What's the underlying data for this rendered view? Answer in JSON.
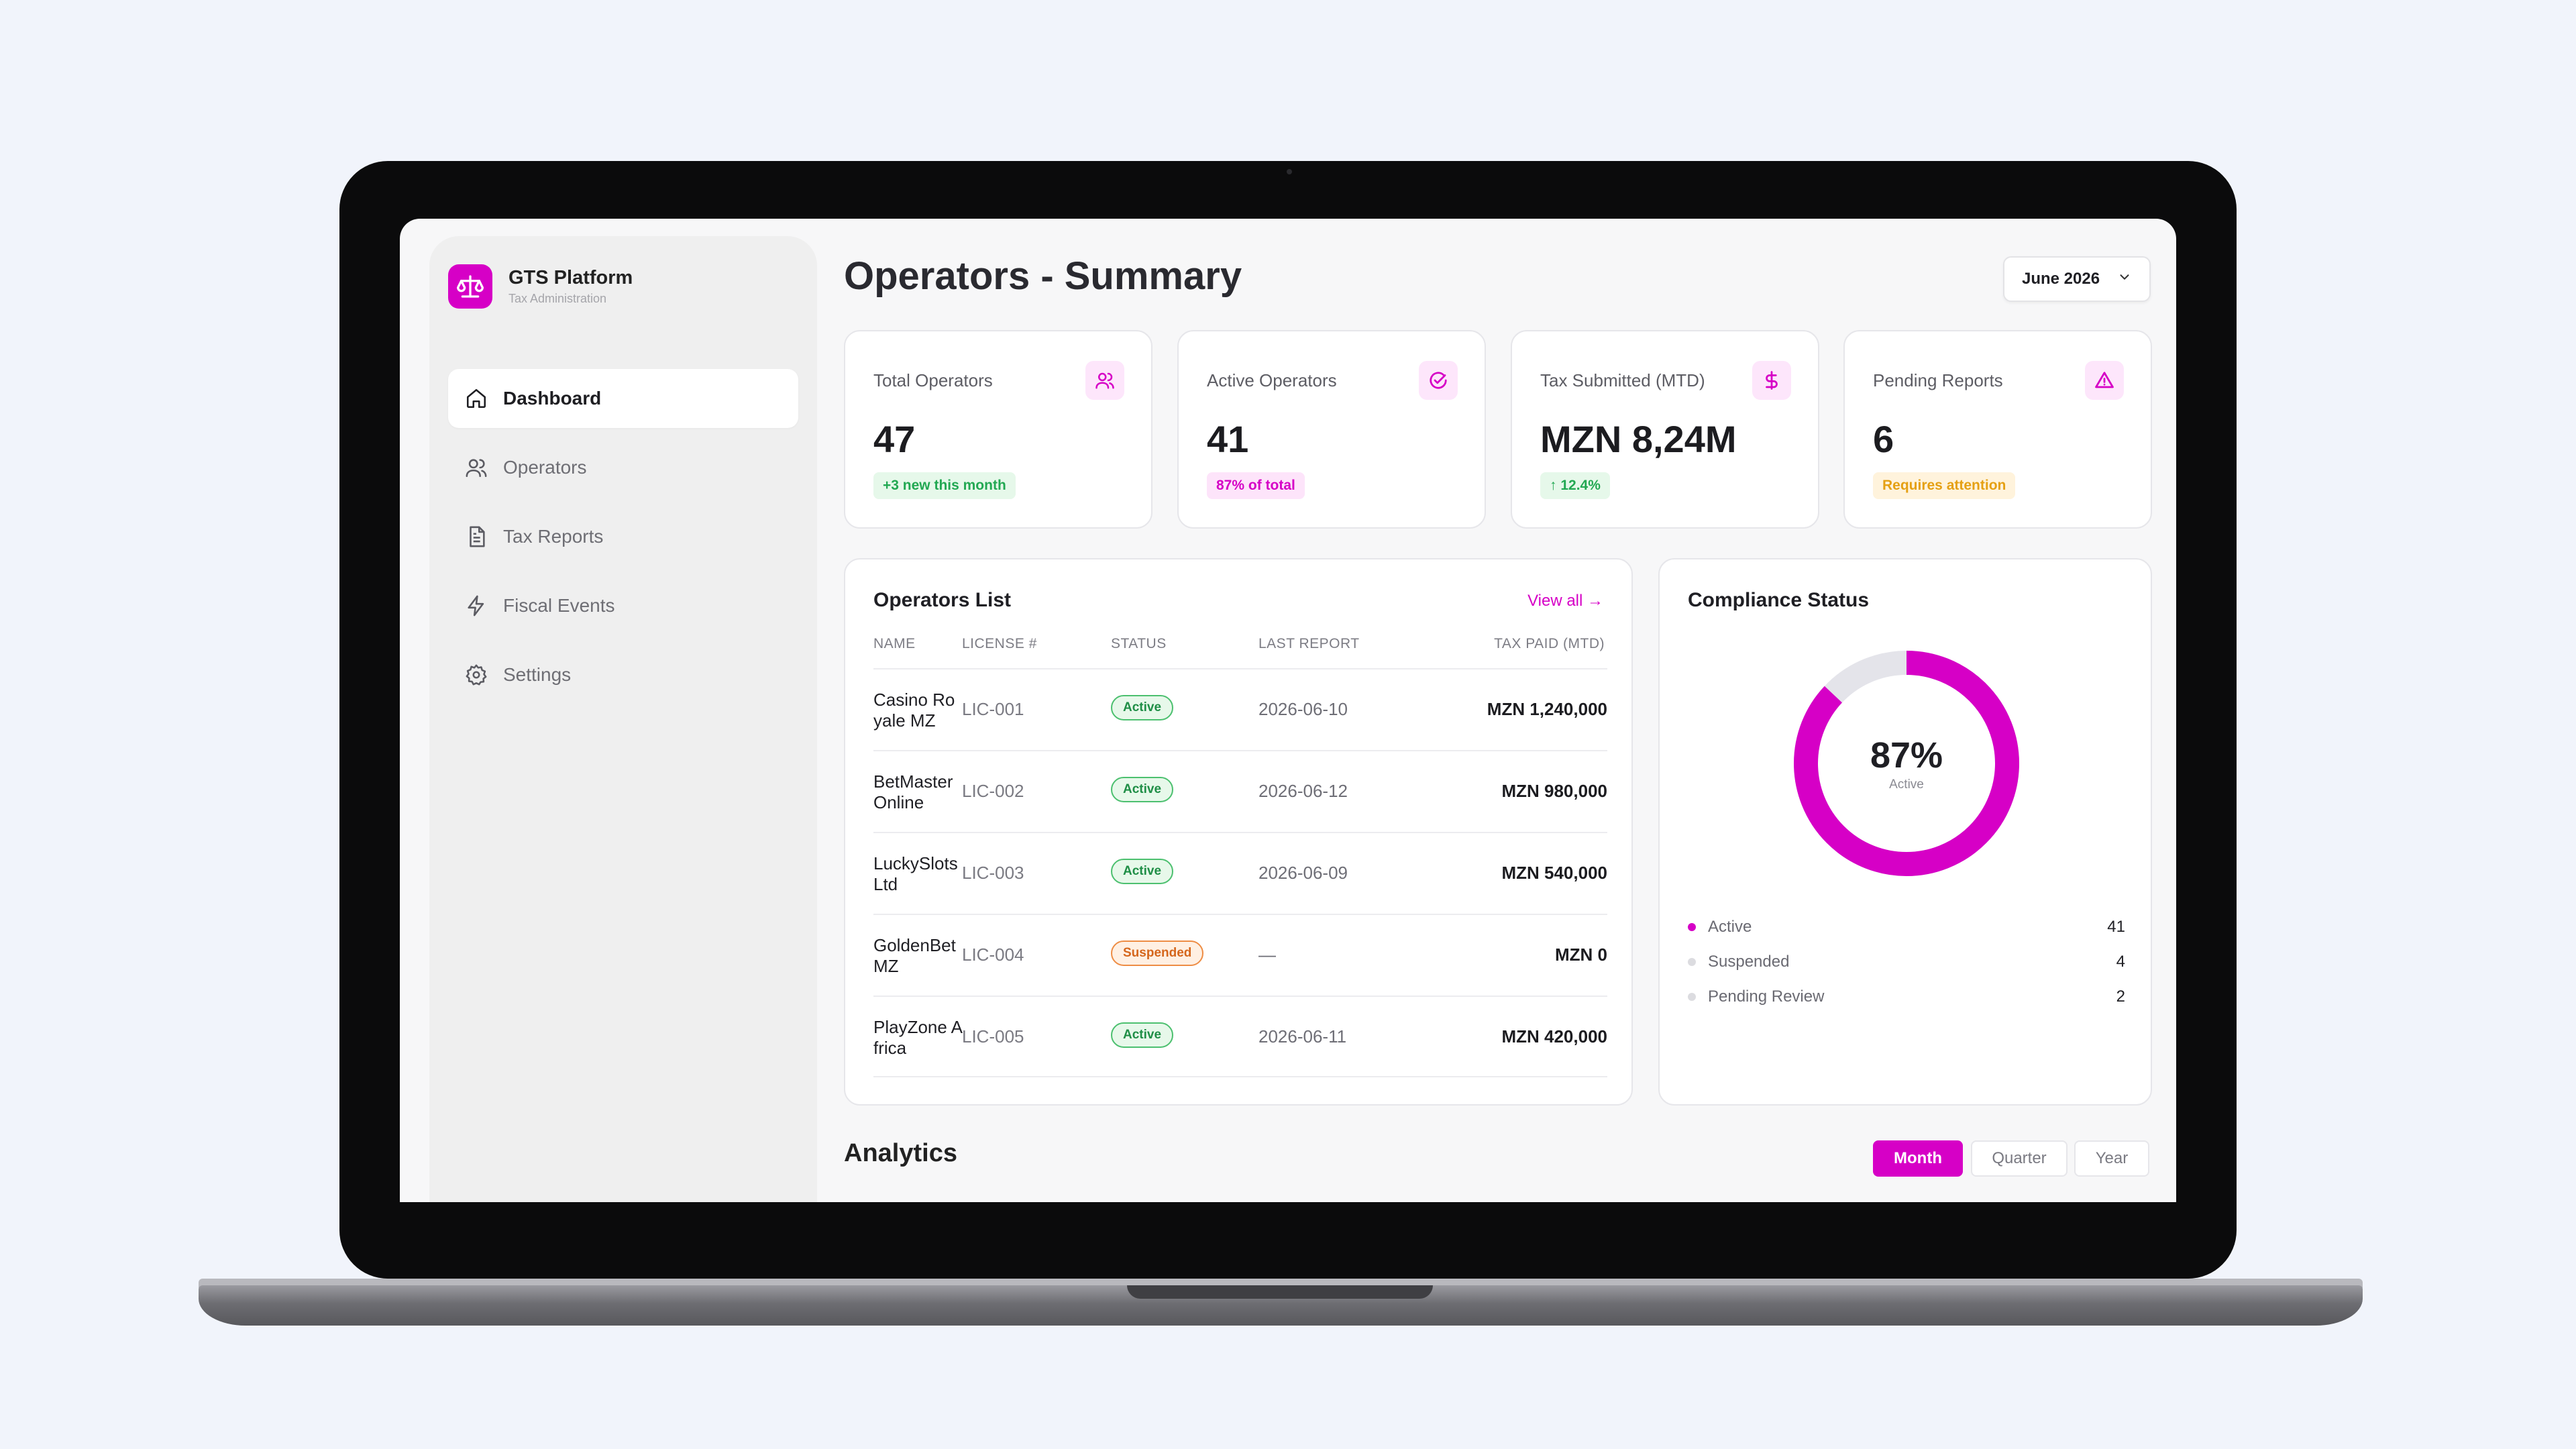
{
  "brand": {
    "title": "GTS Platform",
    "subtitle": "Tax Administration",
    "logo_icon": "scale-icon",
    "accent": "#d600c6"
  },
  "sidebar": {
    "items": [
      {
        "label": "Dashboard",
        "icon": "home-icon",
        "active": true
      },
      {
        "label": "Operators",
        "icon": "users-icon"
      },
      {
        "label": "Tax Reports",
        "icon": "document-icon"
      },
      {
        "label": "Fiscal Events",
        "icon": "lightning-icon"
      },
      {
        "label": "Settings",
        "icon": "gear-icon"
      }
    ]
  },
  "header": {
    "title": "Operators - Summary",
    "period": "June 2026"
  },
  "kpis": [
    {
      "label": "Total Operators",
      "value": "47",
      "badge": "+3 new this month",
      "icon": "users-icon"
    },
    {
      "label": "Active Operators",
      "value": "41",
      "badge": "87% of total",
      "icon": "check-circle-icon"
    },
    {
      "label": "Tax Submitted (MTD)",
      "value": "MZN 8,24M",
      "badge": "↑ 12.4%",
      "icon": "dollar-icon"
    },
    {
      "label": "Pending Reports",
      "value": "6",
      "badge": "Requires attention",
      "icon": "warning-icon"
    }
  ],
  "operators": {
    "title": "Operators List",
    "view_all": "View all →",
    "columns": [
      "NAME",
      "LICENSE #",
      "STATUS",
      "LAST REPORT",
      "TAX PAID (MTD)"
    ],
    "rows": [
      {
        "name": "Casino Royale MZ",
        "license": "LIC-001",
        "status": "Active",
        "last_report": "2026-06-10",
        "tax_paid": "MZN 1,240,000"
      },
      {
        "name": "BetMaster Online",
        "license": "LIC-002",
        "status": "Active",
        "last_report": "2026-06-12",
        "tax_paid": "MZN 980,000"
      },
      {
        "name": "LuckySlots Ltd",
        "license": "LIC-003",
        "status": "Active",
        "last_report": "2026-06-09",
        "tax_paid": "MZN 540,000"
      },
      {
        "name": "GoldenBet MZ",
        "license": "LIC-004",
        "status": "Suspended",
        "last_report": "—",
        "tax_paid": "MZN 0"
      },
      {
        "name": "PlayZone Africa",
        "license": "LIC-005",
        "status": "Active",
        "last_report": "2026-06-11",
        "tax_paid": "MZN 420,000"
      }
    ]
  },
  "compliance": {
    "title": "Compliance Status",
    "percent_label": "87%",
    "percent_value": 0.87,
    "center_sub": "Active",
    "ring_color": "#d600c6",
    "track_color": "#e4e4ea",
    "legend": [
      {
        "label": "Active",
        "value": "41",
        "color": "#d600c6"
      },
      {
        "label": "Suspended",
        "value": "4",
        "color": "#dcdce0"
      },
      {
        "label": "Pending Review",
        "value": "2",
        "color": "#dcdce0"
      }
    ]
  },
  "analytics": {
    "title": "Analytics",
    "ranges": [
      "Month",
      "Quarter",
      "Year"
    ],
    "selected": "Month"
  }
}
